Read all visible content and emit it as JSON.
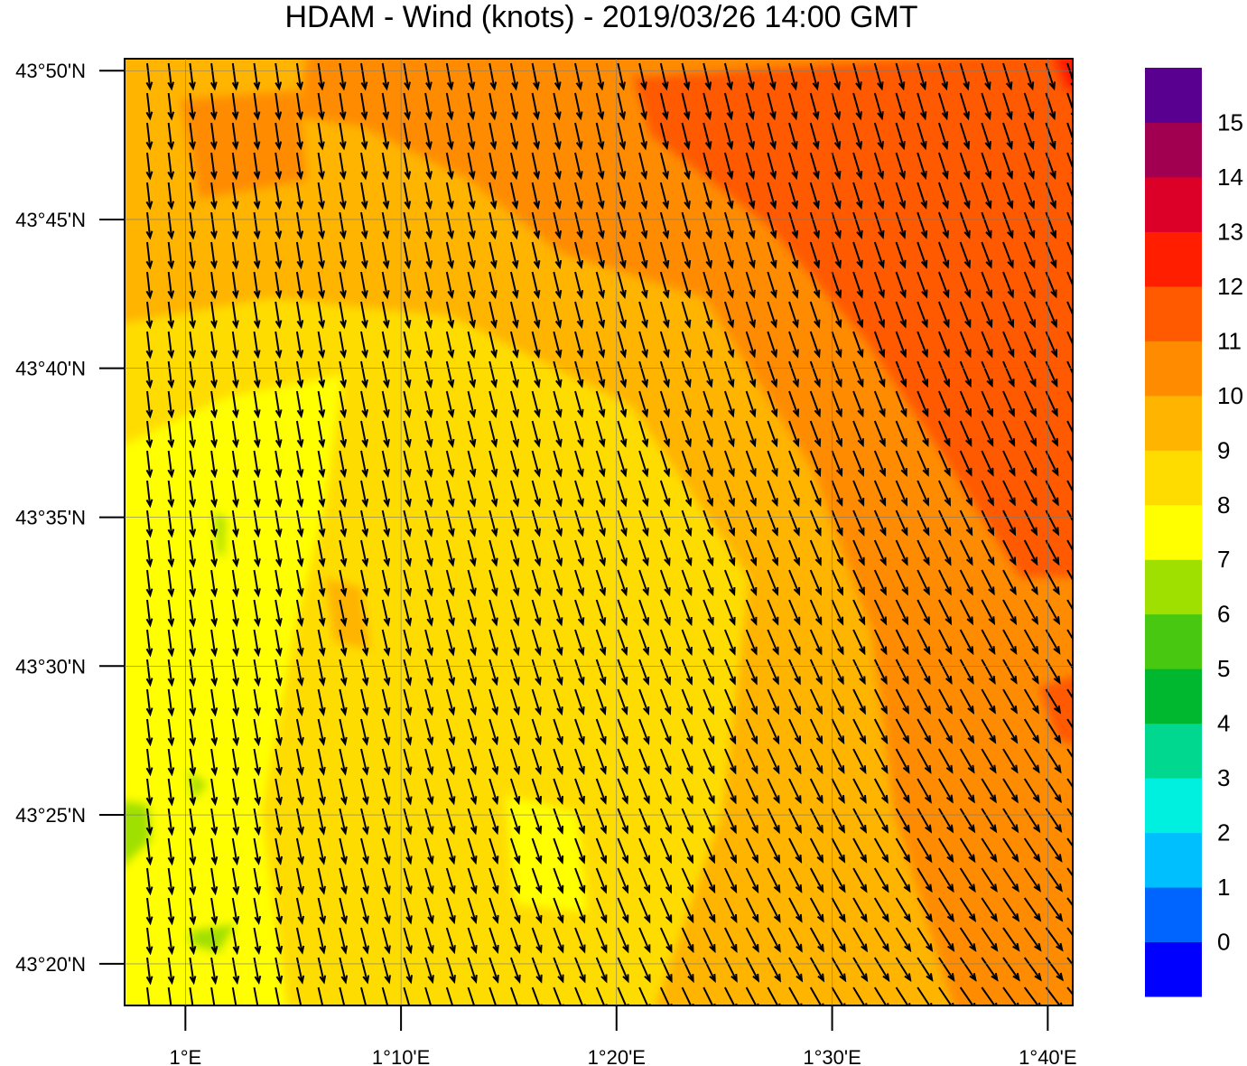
{
  "chart_data": {
    "type": "map",
    "title": "HDAM - Wind (knots)  -  2019/03/26  14:00 GMT",
    "xlim": [
      0.953,
      1.686
    ],
    "ylim": [
      43.31,
      43.84
    ],
    "xticks": [
      {
        "value": 1.0,
        "label": "1°E"
      },
      {
        "value": 1.1667,
        "label": "1°10'E"
      },
      {
        "value": 1.3333,
        "label": "1°20'E"
      },
      {
        "value": 1.5,
        "label": "1°30'E"
      },
      {
        "value": 1.6667,
        "label": "1°40'E"
      }
    ],
    "yticks": [
      {
        "value": 43.3333,
        "label": "43°20'N"
      },
      {
        "value": 43.4167,
        "label": "43°25'N"
      },
      {
        "value": 43.5,
        "label": "43°30'N"
      },
      {
        "value": 43.5833,
        "label": "43°35'N"
      },
      {
        "value": 43.6667,
        "label": "43°40'N"
      },
      {
        "value": 43.75,
        "label": "43°45'N"
      },
      {
        "value": 43.8333,
        "label": "43°50'N"
      }
    ],
    "grid": true,
    "colorbar": {
      "levels": [
        0,
        1,
        2,
        3,
        4,
        5,
        6,
        7,
        8,
        9,
        10,
        11,
        12,
        13,
        14,
        15
      ],
      "colors": [
        "#0000ff",
        "#0064ff",
        "#00bfff",
        "#00f0e0",
        "#00d890",
        "#00b830",
        "#48c810",
        "#a0e000",
        "#ffff00",
        "#ffdc00",
        "#ffb400",
        "#ff8c00",
        "#ff5a00",
        "#ff1e00",
        "#dc0028",
        "#a0004f",
        "#5a0090"
      ]
    }
  }
}
